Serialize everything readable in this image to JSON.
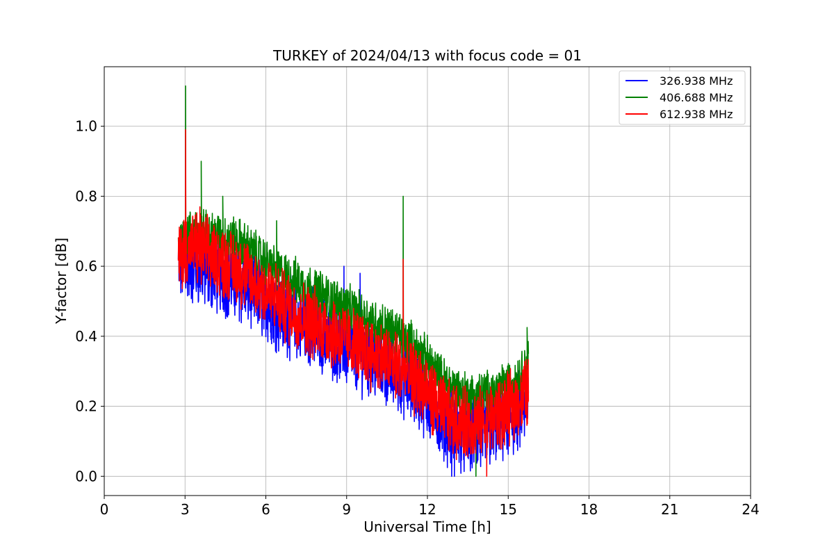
{
  "chart_data": {
    "type": "line",
    "title": "TURKEY of 2024/04/13 with focus code = 01",
    "xlabel": "Universal Time [h]",
    "ylabel": "Y-factor [dB]",
    "xlim": [
      0,
      24
    ],
    "ylim": [
      -0.055,
      1.17
    ],
    "xticks": [
      0,
      3,
      6,
      9,
      12,
      15,
      18,
      21,
      24
    ],
    "xtick_labels": [
      "0",
      "3",
      "6",
      "9",
      "12",
      "15",
      "18",
      "21",
      "24"
    ],
    "yticks": [
      0.0,
      0.2,
      0.4,
      0.6,
      0.8,
      1.0
    ],
    "ytick_labels": [
      "0.0",
      "0.2",
      "0.4",
      "0.6",
      "0.8",
      "1.0"
    ],
    "grid": true,
    "legend_position": "top-right",
    "x": [
      2.75,
      3.0,
      3.5,
      4.0,
      4.5,
      5.0,
      5.5,
      6.0,
      6.5,
      7.0,
      7.5,
      8.0,
      8.5,
      9.0,
      9.5,
      10.0,
      10.5,
      11.0,
      11.5,
      12.0,
      12.5,
      13.0,
      13.5,
      14.0,
      14.5,
      15.0,
      15.5,
      15.75
    ],
    "series": [
      {
        "name": "326.938 MHz",
        "color": "#0000ff",
        "mean": [
          0.6,
          0.61,
          0.6,
          0.58,
          0.57,
          0.55,
          0.53,
          0.5,
          0.47,
          0.45,
          0.43,
          0.41,
          0.39,
          0.37,
          0.35,
          0.33,
          0.31,
          0.29,
          0.26,
          0.22,
          0.17,
          0.13,
          0.12,
          0.12,
          0.14,
          0.16,
          0.19,
          0.22
        ],
        "spread": 0.1,
        "spikes": [
          [
            8.9,
            0.6
          ],
          [
            9.5,
            0.58
          ],
          [
            13.0,
            0.0
          ],
          [
            12.9,
            0.0
          ]
        ]
      },
      {
        "name": "406.688 MHz",
        "color": "#008000",
        "mean": [
          0.66,
          0.69,
          0.7,
          0.69,
          0.68,
          0.67,
          0.64,
          0.61,
          0.58,
          0.56,
          0.54,
          0.52,
          0.5,
          0.48,
          0.46,
          0.44,
          0.42,
          0.4,
          0.37,
          0.33,
          0.28,
          0.25,
          0.23,
          0.23,
          0.24,
          0.26,
          0.29,
          0.33
        ],
        "spread": 0.06,
        "spikes": [
          [
            3.02,
            1.115
          ],
          [
            3.6,
            0.9
          ],
          [
            4.4,
            0.8
          ],
          [
            6.4,
            0.73
          ],
          [
            11.1,
            0.8
          ],
          [
            15.7,
            0.425
          ],
          [
            13.8,
            0.0
          ]
        ]
      },
      {
        "name": "612.938 MHz",
        "color": "#ff0000",
        "mean": [
          0.62,
          0.65,
          0.65,
          0.63,
          0.61,
          0.59,
          0.56,
          0.53,
          0.5,
          0.47,
          0.45,
          0.43,
          0.41,
          0.39,
          0.37,
          0.35,
          0.33,
          0.31,
          0.28,
          0.24,
          0.19,
          0.16,
          0.15,
          0.15,
          0.17,
          0.19,
          0.22,
          0.25
        ],
        "spread": 0.09,
        "spikes": [
          [
            3.02,
            0.99
          ],
          [
            11.1,
            0.62
          ],
          [
            3.55,
            0.77
          ],
          [
            14.2,
            0.0
          ]
        ]
      }
    ]
  }
}
